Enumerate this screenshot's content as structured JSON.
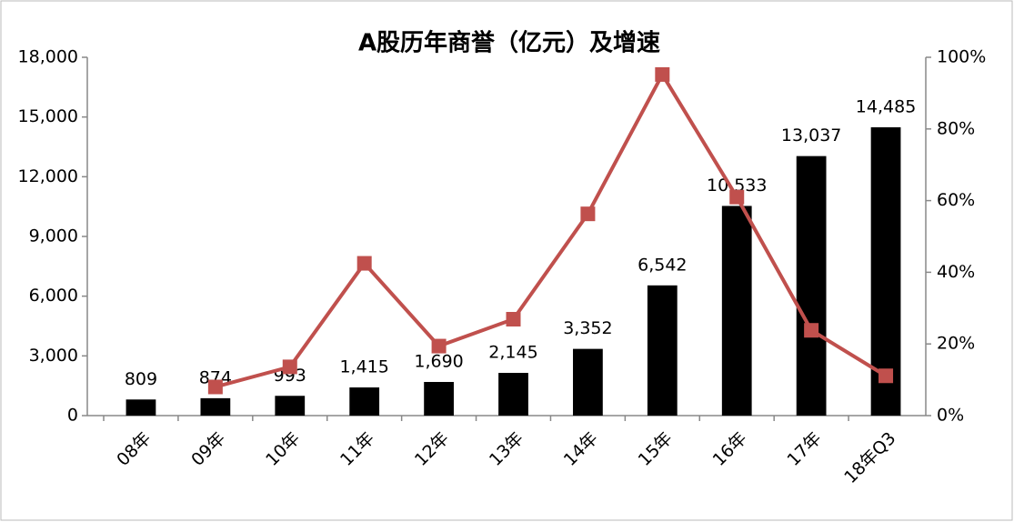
{
  "chart_data": {
    "type": "bar",
    "title": "A股历年商誉（亿元）及增速",
    "categories": [
      "08年",
      "09年",
      "10年",
      "11年",
      "12年",
      "13年",
      "14年",
      "15年",
      "16年",
      "17年",
      "18年Q3"
    ],
    "series": [
      {
        "type": "bar",
        "color": "#000000",
        "values": [
          809,
          874,
          993,
          1415,
          1690,
          2145,
          3352,
          6542,
          10533,
          13037,
          14485
        ],
        "value_labels": [
          "809",
          "874",
          "993",
          "1,415",
          "1,690",
          "2,145",
          "3,352",
          "6,542",
          "10,533",
          "13,037",
          "14,485"
        ]
      },
      {
        "type": "line",
        "axis": "y2",
        "color": "#c0504d",
        "values": [
          null,
          8,
          13.6,
          42.5,
          19.4,
          26.9,
          56.3,
          95.2,
          61,
          23.8,
          11.1
        ]
      }
    ],
    "ylim": [
      0,
      18000
    ],
    "yticks": [
      0,
      {
        "value": 3000,
        "label": "3,000"
      },
      {
        "value": 6000,
        "label": "6,000"
      },
      {
        "value": 9000,
        "label": "9,000"
      },
      {
        "value": 12000,
        "label": "12,000"
      },
      {
        "value": 15000,
        "label": "15,000"
      },
      {
        "value": 18000,
        "label": "18,000"
      }
    ],
    "y2lim": [
      0,
      100
    ],
    "y2ticks": [
      {
        "value": 0,
        "label": "0%"
      },
      {
        "value": 20,
        "label": "20%"
      },
      {
        "value": 40,
        "label": "40%"
      },
      {
        "value": 60,
        "label": "60%"
      },
      {
        "value": 80,
        "label": "80%"
      },
      {
        "value": 100,
        "label": "100%"
      }
    ],
    "grid": false
  }
}
